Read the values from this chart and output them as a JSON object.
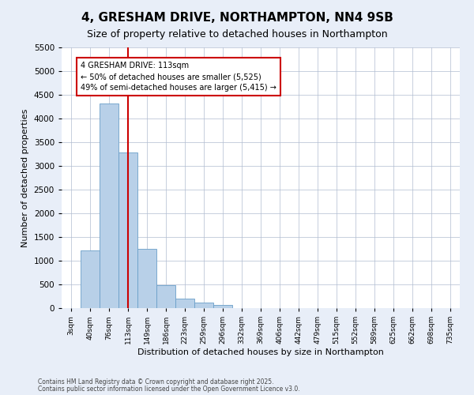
{
  "title": "4, GRESHAM DRIVE, NORTHAMPTON, NN4 9SB",
  "subtitle": "Size of property relative to detached houses in Northampton",
  "xlabel": "Distribution of detached houses by size in Northampton",
  "ylabel": "Number of detached properties",
  "categories": [
    "3sqm",
    "40sqm",
    "76sqm",
    "113sqm",
    "149sqm",
    "186sqm",
    "223sqm",
    "259sqm",
    "296sqm",
    "332sqm",
    "369sqm",
    "406sqm",
    "442sqm",
    "479sqm",
    "515sqm",
    "552sqm",
    "589sqm",
    "625sqm",
    "662sqm",
    "698sqm",
    "735sqm"
  ],
  "values": [
    0,
    1220,
    4320,
    3290,
    1250,
    490,
    195,
    110,
    60,
    0,
    0,
    0,
    0,
    0,
    0,
    0,
    0,
    0,
    0,
    0,
    0
  ],
  "bar_color": "#b8d0e8",
  "bar_edge_color": "#6a9fc8",
  "vline_x_index": 3,
  "vline_color": "#cc0000",
  "annotation_text": "4 GRESHAM DRIVE: 113sqm\n← 50% of detached houses are smaller (5,525)\n49% of semi-detached houses are larger (5,415) →",
  "annotation_box_color": "#cc0000",
  "ylim": [
    0,
    5500
  ],
  "yticks": [
    0,
    500,
    1000,
    1500,
    2000,
    2500,
    3000,
    3500,
    4000,
    4500,
    5000,
    5500
  ],
  "footer_line1": "Contains HM Land Registry data © Crown copyright and database right 2025.",
  "footer_line2": "Contains public sector information licensed under the Open Government Licence v3.0.",
  "bg_color": "#e8eef8",
  "plot_bg_color": "#ffffff"
}
